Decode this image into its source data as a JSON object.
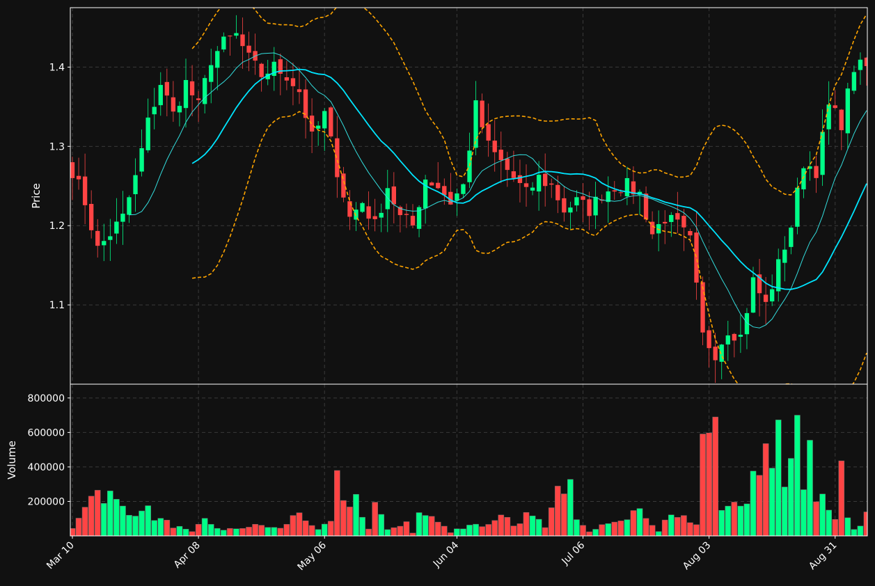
{
  "chart_data": [
    {
      "type": "candlestick",
      "ylabel": "Price",
      "ylim": [
        1.0,
        1.475
      ],
      "yticks": [
        "1.1",
        "1.2",
        "1.3",
        "1.4"
      ],
      "xticks": [
        "Mar 10",
        "Apr 08",
        "May 06",
        "Jun 04",
        "Jul 06",
        "Aug 03",
        "Aug 31"
      ],
      "grid": true,
      "colors": {
        "up": "#00ff88",
        "down": "#ff4444",
        "ma_fast": "#33dddd",
        "ma_slow": "#00e5ff",
        "bands": "#ffa500",
        "background": "#111111",
        "grid": "#3a3a3a"
      },
      "close_anchors": [
        [
          0,
          1.27
        ],
        [
          2,
          1.23
        ],
        [
          4,
          1.17
        ],
        [
          6,
          1.19
        ],
        [
          8,
          1.21
        ],
        [
          10,
          1.26
        ],
        [
          12,
          1.33
        ],
        [
          14,
          1.38
        ],
        [
          16,
          1.34
        ],
        [
          18,
          1.38
        ],
        [
          20,
          1.35
        ],
        [
          22,
          1.41
        ],
        [
          24,
          1.43
        ],
        [
          26,
          1.44
        ],
        [
          28,
          1.41
        ],
        [
          30,
          1.39
        ],
        [
          32,
          1.4
        ],
        [
          34,
          1.39
        ],
        [
          36,
          1.37
        ],
        [
          38,
          1.31
        ],
        [
          40,
          1.34
        ],
        [
          42,
          1.27
        ],
        [
          44,
          1.21
        ],
        [
          46,
          1.23
        ],
        [
          48,
          1.2
        ],
        [
          50,
          1.25
        ],
        [
          52,
          1.21
        ],
        [
          54,
          1.2
        ],
        [
          56,
          1.26
        ],
        [
          58,
          1.25
        ],
        [
          60,
          1.23
        ],
        [
          62,
          1.25
        ],
        [
          64,
          1.35
        ],
        [
          66,
          1.3
        ],
        [
          68,
          1.28
        ],
        [
          70,
          1.26
        ],
        [
          72,
          1.24
        ],
        [
          74,
          1.26
        ],
        [
          76,
          1.25
        ],
        [
          78,
          1.22
        ],
        [
          80,
          1.23
        ],
        [
          82,
          1.22
        ],
        [
          84,
          1.24
        ],
        [
          86,
          1.25
        ],
        [
          88,
          1.25
        ],
        [
          90,
          1.24
        ],
        [
          92,
          1.19
        ],
        [
          94,
          1.21
        ],
        [
          96,
          1.2
        ],
        [
          98,
          1.18
        ],
        [
          100,
          1.06
        ],
        [
          102,
          1.04
        ],
        [
          104,
          1.07
        ],
        [
          106,
          1.06
        ],
        [
          108,
          1.13
        ],
        [
          110,
          1.1
        ],
        [
          112,
          1.15
        ],
        [
          114,
          1.2
        ],
        [
          116,
          1.28
        ],
        [
          118,
          1.27
        ],
        [
          120,
          1.35
        ],
        [
          122,
          1.33
        ],
        [
          124,
          1.4
        ],
        [
          126,
          1.4
        ]
      ],
      "volume_anchors": [
        [
          0,
          40000
        ],
        [
          3,
          270000
        ],
        [
          6,
          230000
        ],
        [
          9,
          120000
        ],
        [
          11,
          180000
        ],
        [
          13,
          110000
        ],
        [
          16,
          60000
        ],
        [
          19,
          20000
        ],
        [
          21,
          90000
        ],
        [
          24,
          30000
        ],
        [
          27,
          50000
        ],
        [
          30,
          60000
        ],
        [
          33,
          40000
        ],
        [
          36,
          140000
        ],
        [
          39,
          30000
        ],
        [
          41,
          80000
        ],
        [
          42,
          320000
        ],
        [
          43,
          170000
        ],
        [
          45,
          225000
        ],
        [
          47,
          40000
        ],
        [
          48,
          190000
        ],
        [
          50,
          30000
        ],
        [
          53,
          85000
        ],
        [
          54,
          20000
        ],
        [
          55,
          125000
        ],
        [
          57,
          110000
        ],
        [
          60,
          20000
        ],
        [
          63,
          70000
        ],
        [
          66,
          60000
        ],
        [
          68,
          140000
        ],
        [
          70,
          60000
        ],
        [
          72,
          120000
        ],
        [
          74,
          80000
        ],
        [
          75,
          40000
        ],
        [
          76,
          150000
        ],
        [
          78,
          320000
        ],
        [
          79,
          290000
        ],
        [
          80,
          90000
        ],
        [
          82,
          20000
        ],
        [
          84,
          80000
        ],
        [
          87,
          110000
        ],
        [
          89,
          140000
        ],
        [
          91,
          120000
        ],
        [
          93,
          30000
        ],
        [
          95,
          140000
        ],
        [
          96,
          110000
        ],
        [
          98,
          80000
        ],
        [
          99,
          60000
        ],
        [
          100,
          520000
        ],
        [
          101,
          630000
        ],
        [
          102,
          720000
        ],
        [
          103,
          190000
        ],
        [
          104,
          200000
        ],
        [
          106,
          140000
        ],
        [
          108,
          310000
        ],
        [
          109,
          350000
        ],
        [
          110,
          660000
        ],
        [
          111,
          460000
        ],
        [
          112,
          640000
        ],
        [
          113,
          340000
        ],
        [
          114,
          570000
        ],
        [
          115,
          790000
        ],
        [
          116,
          250000
        ],
        [
          117,
          540000
        ],
        [
          118,
          200000
        ],
        [
          120,
          190000
        ],
        [
          121,
          100000
        ],
        [
          122,
          480000
        ],
        [
          123,
          140000
        ],
        [
          124,
          50000
        ],
        [
          125,
          60000
        ],
        [
          126,
          175000
        ]
      ],
      "num_points": 127
    },
    {
      "type": "bar",
      "ylabel": "Volume",
      "ylim": [
        0,
        880000
      ],
      "yticks": [
        "200000",
        "400000",
        "600000",
        "800000"
      ]
    }
  ]
}
